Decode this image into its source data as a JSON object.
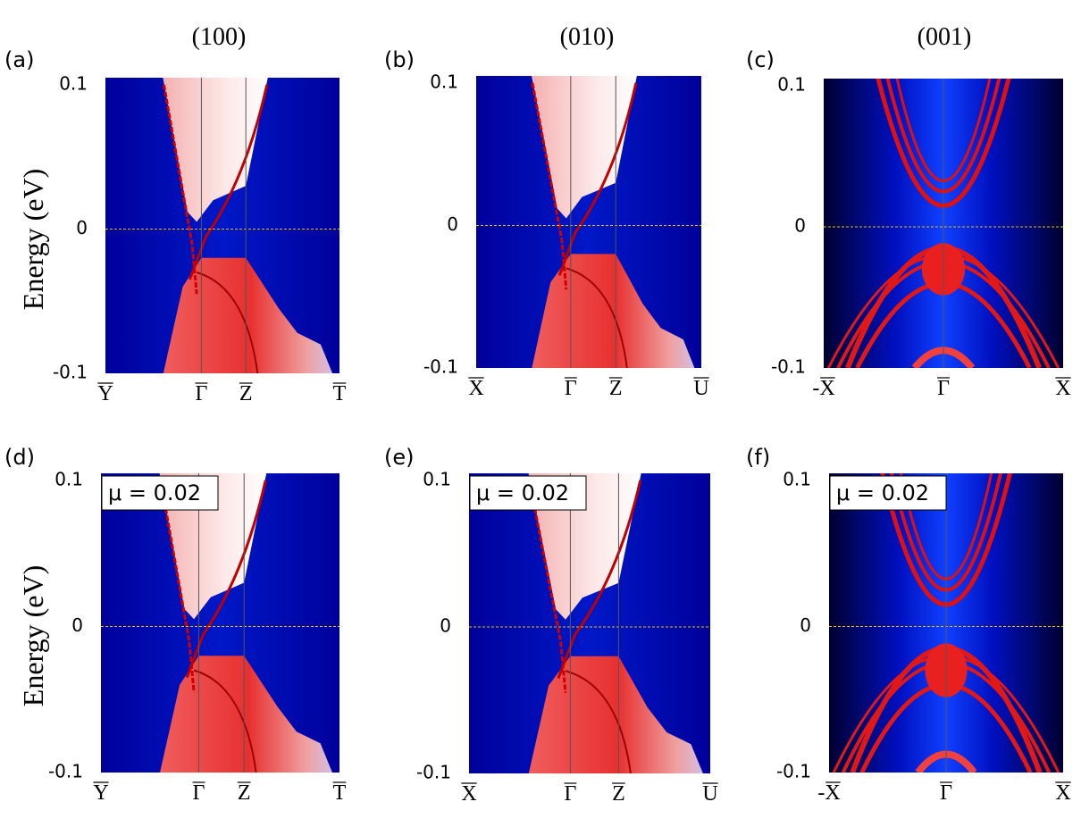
{
  "figure": {
    "column_titles": [
      "(100)",
      "(010)",
      "(001)"
    ],
    "rows": [
      {
        "y_axis_label": "Energy  (eV)"
      },
      {
        "y_axis_label": "Energy  (eV)"
      }
    ],
    "panels": [
      {
        "label": "(a)",
        "yticks": [
          "0.1",
          "0",
          "-0.1"
        ],
        "xticks": [
          "Y",
          "Γ",
          "Z",
          "T"
        ]
      },
      {
        "label": "(b)",
        "yticks": [
          "0.1",
          "0",
          "-0.1"
        ],
        "xticks": [
          "X",
          "Γ",
          "Z",
          "U"
        ]
      },
      {
        "label": "(c)",
        "yticks": [
          "0.1",
          "0",
          "-0.1"
        ],
        "xticks": [
          "-X",
          "Γ",
          "X"
        ]
      },
      {
        "label": "(d)",
        "annotation": "μ = 0.02",
        "yticks": [
          "0.1",
          "0",
          "-0.1"
        ],
        "xticks": [
          "Y",
          "Γ",
          "Z",
          "T"
        ]
      },
      {
        "label": "(e)",
        "annotation": "μ = 0.02",
        "yticks": [
          "0.1",
          "0",
          "-0.1"
        ],
        "xticks": [
          "X",
          "Γ",
          "Z",
          "U"
        ]
      },
      {
        "label": "(f)",
        "annotation": "μ = 0.02",
        "yticks": [
          "0.1",
          "0",
          "-0.1"
        ],
        "xticks": [
          "-X",
          "Γ",
          "X"
        ]
      }
    ]
  }
}
